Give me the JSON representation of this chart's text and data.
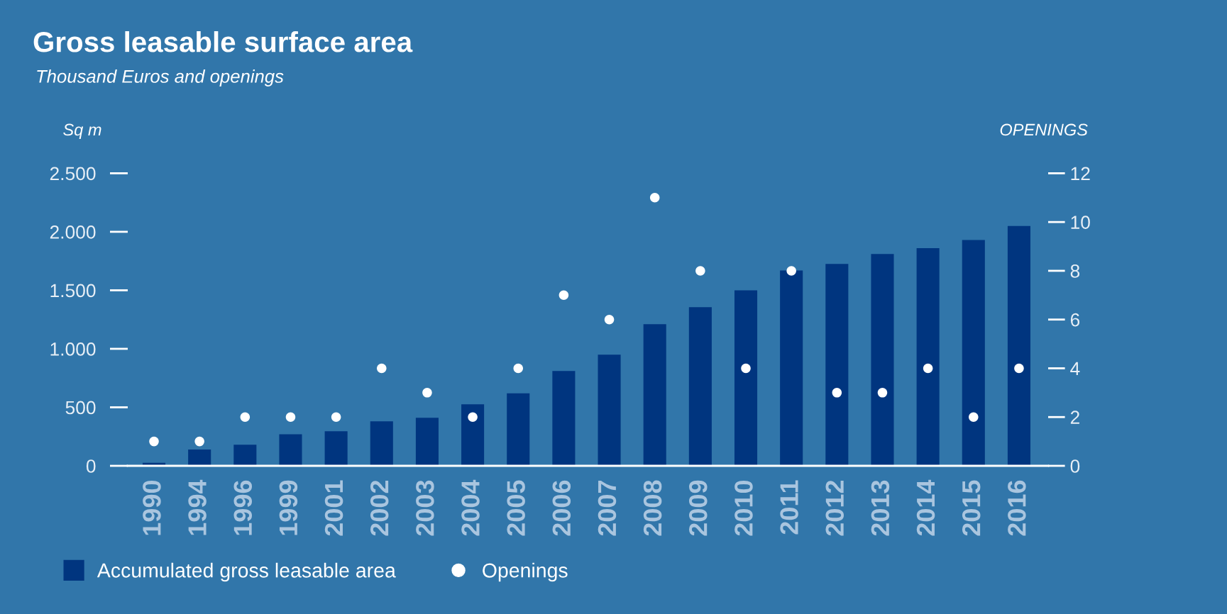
{
  "chart_data": {
    "type": "bar",
    "title": "Gross leasable surface area",
    "subtitle": "Thousand Euros and openings",
    "ylabel": "Sq m",
    "y2label": "OPENINGS",
    "categories": [
      "1990",
      "1994",
      "1996",
      "1999",
      "2001",
      "2002",
      "2003",
      "2004",
      "2005",
      "2006",
      "2007",
      "2008",
      "2009",
      "2010",
      "2011",
      "2012",
      "2013",
      "2014",
      "2015",
      "2016"
    ],
    "series": [
      {
        "name": "Accumulated gross leasable area",
        "color": "#00357f",
        "values": [
          25,
          140,
          180,
          270,
          295,
          380,
          410,
          525,
          620,
          810,
          950,
          1210,
          1355,
          1500,
          1670,
          1725,
          1810,
          1860,
          1930,
          2050
        ]
      },
      {
        "name": "Openings",
        "type": "scatter",
        "axis": "y2",
        "color": "#ffffff",
        "values": [
          1,
          1,
          2,
          2,
          2,
          4,
          3,
          2,
          4,
          7,
          6,
          11,
          8,
          4,
          8,
          3,
          3,
          4,
          2,
          4
        ]
      }
    ],
    "ylim": [
      0,
      2500
    ],
    "yticks": [
      0,
      500,
      {
        "value": 1000,
        "label": "1.000"
      },
      {
        "value": 1500,
        "label": "1.500"
      },
      {
        "value": 2000,
        "label": "2.000"
      },
      {
        "value": 2500,
        "label": "2.500"
      }
    ],
    "y2lim": [
      0,
      12
    ],
    "y2ticks": [
      0,
      2,
      4,
      6,
      8,
      10,
      12
    ],
    "legend": "bottom",
    "marker": "circle"
  }
}
